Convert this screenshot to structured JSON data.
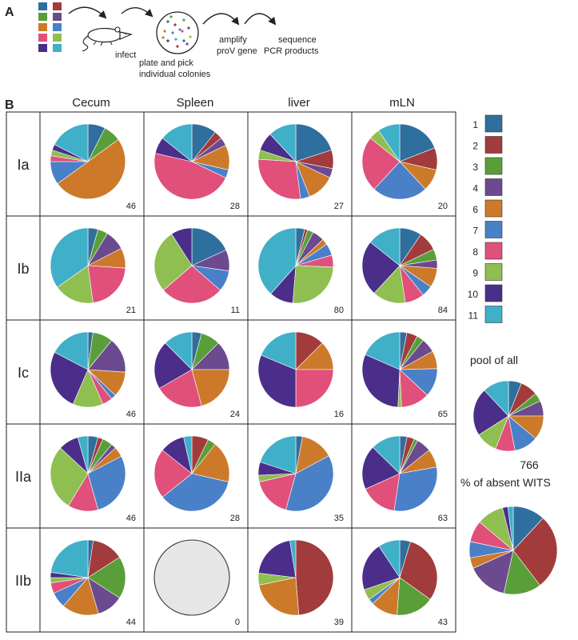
{
  "panel_a": {
    "label": "A",
    "steps": {
      "infect": "infect",
      "plate_line1": "plate and pick",
      "plate_line2": "individual colonies",
      "amplify_line1": "amplify",
      "amplify_line2": "proV gene",
      "sequence_line1": "sequence",
      "sequence_line2": "PCR products"
    }
  },
  "panel_b": {
    "label": "B"
  },
  "colors": {
    "1": "#2e6f9e",
    "2": "#a23b3b",
    "3": "#5a9e3a",
    "4": "#6b4a90",
    "6": "#cc7a2a",
    "7": "#4a80c8",
    "8": "#e0507a",
    "9": "#8fbf50",
    "10": "#4a2e8a",
    "11": "#3fb0c8"
  },
  "legend": [
    "1",
    "2",
    "3",
    "4",
    "6",
    "7",
    "8",
    "9",
    "10",
    "11"
  ],
  "pool": {
    "label": "pool of all",
    "n": "766"
  },
  "absent": {
    "label": "% of absent WITS"
  },
  "chart_data": {
    "type": "pie",
    "columns": [
      "Cecum",
      "Spleen",
      "liver",
      "mLN"
    ],
    "rows": [
      "Ia",
      "Ib",
      "Ic",
      "IIa",
      "IIb"
    ],
    "categories": [
      "1",
      "2",
      "3",
      "4",
      "6",
      "7",
      "8",
      "9",
      "10",
      "11"
    ],
    "cells": [
      [
        {
          "n": "46",
          "values": [
            3,
            0,
            3,
            0,
            20,
            4,
            1,
            1,
            1,
            7
          ]
        },
        {
          "n": "28",
          "values": [
            3,
            1,
            0,
            1,
            3,
            1,
            13,
            0,
            2,
            4
          ]
        },
        {
          "n": "27",
          "values": [
            5,
            2,
            0,
            1,
            3,
            1,
            7,
            1,
            2,
            3
          ]
        },
        {
          "n": "20",
          "values": [
            4,
            2,
            0,
            0,
            2,
            5,
            5,
            1,
            0,
            2
          ]
        }
      ],
      [
        {
          "n": "21",
          "values": [
            1,
            0,
            1,
            2,
            2,
            0,
            5,
            4,
            0,
            8
          ]
        },
        {
          "n": "11",
          "values": [
            2,
            0,
            0,
            1,
            0,
            1,
            3,
            3,
            1,
            0
          ]
        },
        {
          "n": "80",
          "values": [
            3,
            1,
            2,
            4,
            2,
            4,
            4,
            20,
            8,
            30
          ]
        },
        {
          "n": "84",
          "values": [
            8,
            7,
            4,
            3,
            7,
            4,
            7,
            12,
            20,
            12
          ]
        }
      ],
      [
        {
          "n": "46",
          "values": [
            1,
            0,
            4,
            7,
            5,
            1,
            2,
            6,
            12,
            8
          ]
        },
        {
          "n": "24",
          "values": [
            1,
            0,
            2,
            3,
            5,
            0,
            5,
            0,
            5,
            3
          ]
        },
        {
          "n": "16",
          "values": [
            0,
            2,
            0,
            0,
            2,
            0,
            4,
            0,
            5,
            3
          ]
        },
        {
          "n": "65",
          "values": [
            2,
            3,
            2,
            4,
            5,
            8,
            8,
            1,
            20,
            12
          ]
        }
      ],
      [
        {
          "n": "46",
          "values": [
            2,
            1,
            2,
            1,
            2,
            13,
            6,
            13,
            4,
            2
          ]
        },
        {
          "n": "28",
          "values": [
            0,
            2,
            1,
            0,
            5,
            10,
            6,
            0,
            3,
            1
          ]
        },
        {
          "n": "35",
          "values": [
            1,
            0,
            0,
            0,
            5,
            13,
            6,
            1,
            2,
            7
          ]
        },
        {
          "n": "63",
          "values": [
            2,
            2,
            1,
            4,
            5,
            19,
            10,
            0,
            12,
            8
          ]
        }
      ],
      [
        {
          "n": "44",
          "values": [
            1,
            6,
            8,
            5,
            7,
            3,
            2,
            1,
            1,
            10
          ]
        },
        {
          "n": "0",
          "values": []
        },
        {
          "n": "39",
          "values": [
            0,
            19,
            0,
            0,
            9,
            0,
            0,
            2,
            8,
            1
          ]
        },
        {
          "n": "43",
          "values": [
            2,
            13,
            7,
            0,
            5,
            1,
            0,
            2,
            9,
            4
          ]
        }
      ]
    ],
    "pool": [
      6,
      8,
      4,
      7,
      11,
      11,
      9,
      10,
      22,
      12
    ],
    "absent": [
      12,
      28,
      14,
      15,
      4,
      6,
      8,
      10,
      2,
      2
    ]
  }
}
